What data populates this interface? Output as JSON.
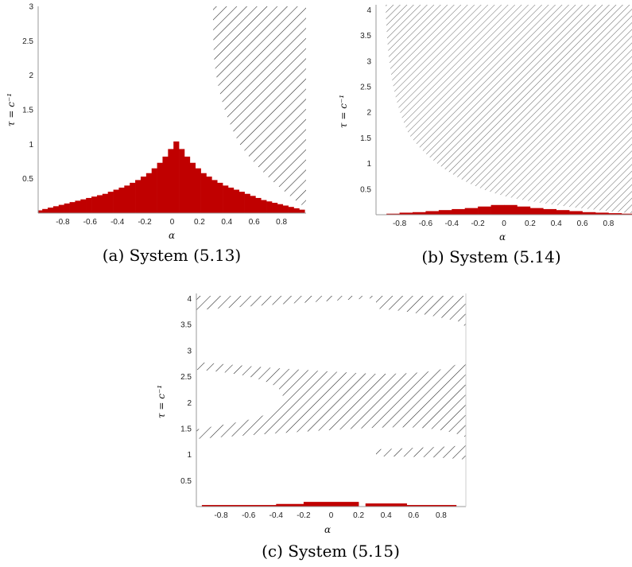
{
  "figure": {
    "captions": [
      "(a) System (5.13)",
      "(b) System (5.14)",
      "(c) System (5.15)"
    ]
  },
  "chart_data": [
    {
      "type": "bar",
      "panel": "a",
      "caption": "(a) System (5.13)",
      "xlabel": "α",
      "ylabel": "τ = c⁻¹",
      "xlim": [
        -0.98,
        0.98
      ],
      "ylim": [
        0,
        3
      ],
      "xticks": [
        "-0.8",
        "-0.6",
        "-0.4",
        "-0.2",
        "0",
        "0.2",
        "0.4",
        "0.6",
        "0.8"
      ],
      "yticks": [
        "0.5",
        "1",
        "1.5",
        "2",
        "2.5",
        "3"
      ],
      "bar_color": "#c00000",
      "bars_description": "step-histogram of stable region",
      "bars": {
        "x": [
          -0.97,
          -0.93,
          -0.89,
          -0.85,
          -0.81,
          -0.77,
          -0.73,
          -0.69,
          -0.65,
          -0.61,
          -0.57,
          -0.53,
          -0.49,
          -0.45,
          -0.41,
          -0.37,
          -0.33,
          -0.29,
          -0.25,
          -0.21,
          -0.17,
          -0.13,
          -0.09,
          -0.05,
          -0.01,
          0.03,
          0.07,
          0.11,
          0.15,
          0.19,
          0.23,
          0.27,
          0.31,
          0.35,
          0.39,
          0.43,
          0.47,
          0.51,
          0.55,
          0.59,
          0.63,
          0.67,
          0.71,
          0.75,
          0.79,
          0.83,
          0.87,
          0.91,
          0.95
        ],
        "y": [
          0.04,
          0.06,
          0.08,
          0.1,
          0.12,
          0.14,
          0.16,
          0.18,
          0.2,
          0.22,
          0.24,
          0.26,
          0.28,
          0.31,
          0.34,
          0.37,
          0.4,
          0.44,
          0.48,
          0.53,
          0.58,
          0.65,
          0.73,
          0.82,
          0.93,
          1.04,
          0.93,
          0.82,
          0.73,
          0.65,
          0.58,
          0.53,
          0.48,
          0.44,
          0.4,
          0.37,
          0.34,
          0.31,
          0.28,
          0.25,
          0.22,
          0.19,
          0.17,
          0.15,
          0.13,
          0.11,
          0.09,
          0.07,
          0.05
        ],
        "width": 0.04
      },
      "hatch_region": "right, bounded by curve from (0.3,3) to (0.98,0.1)"
    },
    {
      "type": "bar",
      "panel": "b",
      "caption": "(b) System (5.14)",
      "xlabel": "α",
      "ylabel": "τ = c⁻¹",
      "xlim": [
        -0.98,
        0.98
      ],
      "ylim": [
        0,
        4.1
      ],
      "xticks": [
        "-0.8",
        "-0.6",
        "-0.4",
        "-0.2",
        "0",
        "0.2",
        "0.4",
        "0.6",
        "0.8"
      ],
      "yticks": [
        "0.5",
        "1",
        "1.5",
        "2",
        "2.5",
        "3",
        "3.5",
        "4"
      ],
      "bar_color": "#c00000",
      "bars": {
        "x": [
          -0.85,
          -0.75,
          -0.65,
          -0.55,
          -0.45,
          -0.35,
          -0.25,
          -0.15,
          -0.05,
          0.05,
          0.15,
          0.25,
          0.35,
          0.45,
          0.55,
          0.65,
          0.75,
          0.85,
          0.95
        ],
        "y": [
          0.02,
          0.04,
          0.05,
          0.07,
          0.09,
          0.11,
          0.13,
          0.16,
          0.19,
          0.19,
          0.16,
          0.13,
          0.11,
          0.09,
          0.07,
          0.05,
          0.04,
          0.03,
          0.02
        ],
        "width": 0.1
      },
      "hatch_region": "upper, bounded below by curve from (-0.85,4.1) to (0.98,0.02)"
    },
    {
      "type": "bar",
      "panel": "c",
      "caption": "(c) System (5.15)",
      "xlabel": "α",
      "ylabel": "τ = c⁻¹",
      "xlim": [
        -0.98,
        0.98
      ],
      "ylim": [
        0,
        4.1
      ],
      "xticks": [
        "-0.8",
        "-0.6",
        "-0.4",
        "-0.2",
        "0",
        "0.2",
        "0.4",
        "0.6",
        "0.8"
      ],
      "yticks": [
        "0.5",
        "1",
        "1.5",
        "2",
        "2.5",
        "3",
        "3.5",
        "4"
      ],
      "bar_color": "#c00000",
      "bars": {
        "x": [
          -0.62,
          -0.3,
          0.0,
          0.4,
          0.72
        ],
        "y": [
          0.03,
          0.05,
          0.09,
          0.06,
          0.03
        ],
        "width": [
          0.64,
          0.2,
          0.4,
          0.3,
          0.38
        ]
      },
      "hatch_region": "three bands: ~3.8–4.1, ~1.4–2.8 (notched at left), ~1.0–1.2 (right side)"
    }
  ]
}
